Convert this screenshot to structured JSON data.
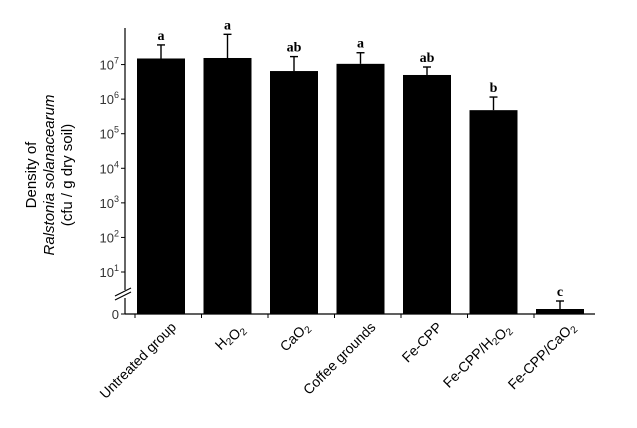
{
  "chart_data": {
    "type": "bar",
    "title": "",
    "xlabel": "",
    "ylabel_lines": [
      "Density of",
      "Ralstonia solanacearum",
      "(cfu / g dry soil)"
    ],
    "yscale": "log",
    "ylim": [
      1,
      10000000
    ],
    "axis_break": true,
    "y_tick_labels": [
      "0",
      "10^1",
      "10^2",
      "10^3",
      "10^4",
      "10^5",
      "10^6",
      "10^7"
    ],
    "categories": [
      "Untreated group",
      "H2O2",
      "CaO2",
      "Coffee grounds",
      "Fe-CPP",
      "Fe-CPP/H2O2",
      "Fe-CPP/CaO2"
    ],
    "values": [
      1500000,
      1550000,
      650000,
      1050000,
      500000,
      48000,
      0
    ],
    "error_upper": [
      3700000,
      7500000,
      1700000,
      2200000,
      850000,
      115000,
      0
    ],
    "significance": [
      "a",
      "a",
      "ab",
      "a",
      "ab",
      "b",
      "c"
    ],
    "grid": false,
    "bar_color": "#000000"
  }
}
